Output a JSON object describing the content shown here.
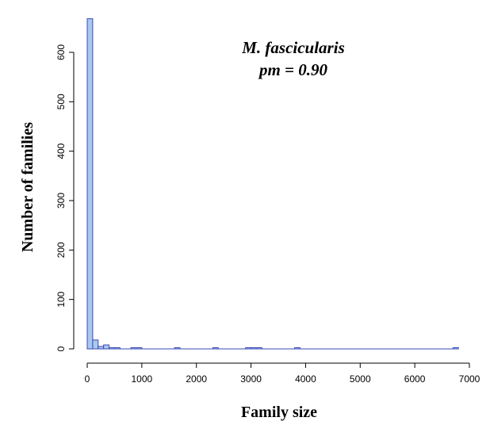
{
  "chart_data": {
    "type": "bar",
    "histogram": true,
    "xlabel": "Family size",
    "ylabel": "Number of families",
    "annotations": [
      "M. fascicularis",
      "pm = 0.90"
    ],
    "xlim": [
      0,
      7000
    ],
    "ylim": [
      0,
      650
    ],
    "x_ticks": [
      0,
      1000,
      2000,
      3000,
      4000,
      5000,
      6000,
      7000
    ],
    "y_ticks": [
      0,
      100,
      200,
      300,
      400,
      500,
      600
    ],
    "bin_width": 100,
    "bins": [
      {
        "x0": 0,
        "x1": 100,
        "count": 668
      },
      {
        "x0": 100,
        "x1": 200,
        "count": 18
      },
      {
        "x0": 200,
        "x1": 300,
        "count": 5
      },
      {
        "x0": 300,
        "x1": 400,
        "count": 8
      },
      {
        "x0": 400,
        "x1": 500,
        "count": 2
      },
      {
        "x0": 500,
        "x1": 600,
        "count": 1
      },
      {
        "x0": 800,
        "x1": 900,
        "count": 2
      },
      {
        "x0": 900,
        "x1": 1000,
        "count": 1
      },
      {
        "x0": 1600,
        "x1": 1700,
        "count": 1
      },
      {
        "x0": 2300,
        "x1": 2400,
        "count": 1
      },
      {
        "x0": 2900,
        "x1": 3000,
        "count": 1
      },
      {
        "x0": 3000,
        "x1": 3100,
        "count": 1
      },
      {
        "x0": 3100,
        "x1": 3200,
        "count": 1
      },
      {
        "x0": 3800,
        "x1": 3900,
        "count": 1
      },
      {
        "x0": 6700,
        "x1": 6800,
        "count": 1
      }
    ],
    "colors": {
      "fill": "#a9c9ee",
      "stroke": "#3a4ab5",
      "axis": "#000000"
    }
  }
}
